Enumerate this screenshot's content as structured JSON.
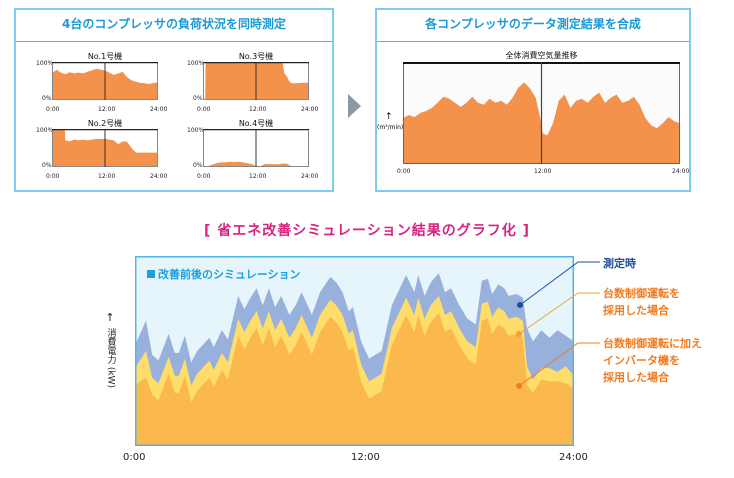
{
  "left_panel": {
    "title": "4台のコンプレッサの負荷状況を同時測定",
    "y_top": "100%",
    "y_bottom": "0%",
    "x_ticks": [
      "0:00",
      "12:00",
      "24:00"
    ],
    "charts": [
      {
        "title": "No.1号機",
        "x": [
          0,
          1,
          2,
          3,
          4,
          5,
          6,
          7,
          8,
          9,
          10,
          11,
          12,
          13,
          14,
          15,
          16,
          17,
          18,
          19,
          20,
          21,
          22,
          23,
          24
        ],
        "y": [
          70,
          80,
          72,
          68,
          73,
          70,
          72,
          70,
          74,
          78,
          82,
          80,
          78,
          72,
          66,
          70,
          74,
          60,
          52,
          48,
          45,
          44,
          42,
          45,
          46
        ]
      },
      {
        "title": "No.3号機",
        "x": [
          0,
          0.5,
          0.6,
          1,
          2,
          4,
          6,
          8,
          10,
          12,
          14,
          16,
          18,
          18.4,
          19,
          19.5,
          20,
          21,
          22,
          23,
          24
        ],
        "y": [
          0,
          0,
          100,
          100,
          100,
          100,
          100,
          100,
          100,
          100,
          100,
          100,
          100,
          70,
          62,
          50,
          44,
          44,
          45,
          45,
          46
        ]
      },
      {
        "title": "No.2号機",
        "x": [
          0,
          1,
          2,
          2.9,
          3,
          4,
          5,
          6,
          7,
          8,
          9,
          10,
          11,
          12,
          13,
          14,
          15,
          16,
          17,
          18,
          19,
          20,
          21,
          22,
          23,
          24
        ],
        "y": [
          100,
          100,
          100,
          100,
          70,
          68,
          72,
          70,
          72,
          70,
          72,
          74,
          74,
          74,
          72,
          70,
          60,
          68,
          66,
          50,
          38,
          38,
          38,
          38,
          38,
          38
        ]
      },
      {
        "title": "No.4号機",
        "x": [
          0,
          1,
          2,
          3,
          4,
          5,
          6,
          7,
          8,
          9,
          10,
          11,
          12,
          13,
          14,
          15,
          16,
          17,
          18,
          19,
          20,
          21,
          22,
          23,
          24
        ],
        "y": [
          2,
          2,
          6,
          10,
          12,
          12,
          14,
          13,
          14,
          12,
          10,
          8,
          3,
          2,
          8,
          8,
          7,
          7,
          9,
          9,
          2,
          2,
          2,
          2,
          2
        ]
      }
    ]
  },
  "right_panel": {
    "title": "各コンプレッサのデータ測定結果を合成",
    "chart_title": "全体消費空気量推移",
    "y_unit": "(m³/min)",
    "x_ticks": [
      "0:00",
      "12:00",
      "24:00"
    ]
  },
  "heading": "[ 省エネ改善シミュレーション結果のグラフ化 ]",
  "chart_data": [
    {
      "type": "area",
      "title": "全体消費空気量推移",
      "ylabel": "(m³/min)",
      "xlim": [
        0,
        24
      ],
      "ylim": [
        0,
        100
      ],
      "x": [
        0,
        0.5,
        1,
        1.5,
        2,
        2.5,
        3,
        3.5,
        4,
        4.5,
        5,
        5.5,
        6,
        6.5,
        7,
        7.5,
        8,
        8.5,
        9,
        9.5,
        10,
        10.5,
        11,
        11.5,
        11.9,
        12.1,
        12.5,
        13,
        13.5,
        14,
        14.5,
        15,
        15.5,
        16,
        16.5,
        17,
        17.5,
        18,
        18.5,
        19,
        19.5,
        20,
        20.5,
        21,
        21.5,
        22,
        22.5,
        23,
        23.5,
        24
      ],
      "y": [
        45,
        48,
        46,
        50,
        52,
        55,
        60,
        66,
        64,
        60,
        56,
        60,
        66,
        60,
        58,
        64,
        60,
        62,
        58,
        65,
        75,
        80,
        74,
        65,
        45,
        30,
        28,
        40,
        62,
        68,
        55,
        62,
        64,
        60,
        66,
        70,
        60,
        65,
        68,
        60,
        62,
        66,
        58,
        45,
        38,
        35,
        40,
        46,
        42,
        40
      ]
    },
    {
      "type": "area",
      "legend_title": "改善前後のシミュレーション",
      "ylabel": "消費電力 (kW)",
      "x_ticks": [
        "0:00",
        "12:00",
        "24:00"
      ],
      "xlim": [
        0,
        24
      ],
      "ylim": [
        0,
        100
      ],
      "x": [
        0,
        0.6,
        0.94,
        1.28,
        1.84,
        2.17,
        2.4,
        2.73,
        3.07,
        3.4,
        4.07,
        4.3,
        4.75,
        5.08,
        5.64,
        5.98,
        6.31,
        6.65,
        6.98,
        7.32,
        7.66,
        7.99,
        8.44,
        8.78,
        9.11,
        9.67,
        10.12,
        10.68,
        11.01,
        11.35,
        11.69,
        11.91,
        12.36,
        12.8,
        13.48,
        14.04,
        14.82,
        15.27,
        15.49,
        15.83,
        16.16,
        16.61,
        16.95,
        17.28,
        17.73,
        18.18,
        18.63,
        18.96,
        19.3,
        19.52,
        19.86,
        20.19,
        20.42,
        20.86,
        21.2,
        21.43,
        21.76,
        22.21,
        22.66,
        23.1,
        23.55,
        24
      ],
      "series": [
        {
          "name": "測定時",
          "color": "#97b1dc",
          "values": [
            53,
            66,
            48,
            45,
            59,
            49,
            49,
            58,
            44,
            50,
            57,
            52,
            61,
            56,
            79,
            72,
            78,
            83,
            74,
            83,
            73,
            79,
            69,
            74,
            81,
            69,
            81,
            89,
            86,
            81,
            71,
            73,
            55,
            46,
            50,
            74,
            90,
            81,
            90,
            79,
            86,
            91,
            81,
            83,
            74,
            67,
            64,
            87,
            88,
            80,
            85,
            83,
            79,
            80,
            78,
            62,
            55,
            61,
            57,
            61,
            58,
            55
          ]
        },
        {
          "name": "台数制御運転を採用した場合",
          "color": "#fedd6a",
          "values": [
            41,
            50,
            36,
            33,
            47,
            37,
            37,
            46,
            32,
            38,
            45,
            40,
            49,
            44,
            67,
            60,
            66,
            71,
            62,
            71,
            61,
            67,
            57,
            62,
            69,
            57,
            69,
            77,
            74,
            69,
            59,
            61,
            43,
            34,
            38,
            62,
            78,
            69,
            78,
            67,
            74,
            79,
            69,
            71,
            62,
            55,
            52,
            75,
            76,
            68,
            73,
            71,
            67,
            68,
            66,
            42,
            35,
            41,
            41,
            39,
            42,
            37
          ]
        },
        {
          "name": "台数制御運転に加えインバータ機を採用した場合",
          "color": "#fbb84d",
          "values": [
            32,
            36,
            27,
            24,
            38,
            28,
            28,
            37,
            23,
            29,
            36,
            31,
            40,
            35,
            58,
            51,
            57,
            62,
            53,
            62,
            52,
            58,
            48,
            53,
            60,
            48,
            60,
            68,
            65,
            60,
            50,
            52,
            34,
            25,
            29,
            53,
            69,
            60,
            69,
            58,
            65,
            70,
            60,
            62,
            53,
            46,
            43,
            66,
            67,
            59,
            64,
            62,
            58,
            59,
            57,
            32,
            28,
            35,
            34,
            34,
            33,
            30
          ]
        }
      ]
    }
  ],
  "annotations": [
    {
      "lines": [
        "測定時"
      ],
      "color": "#1c4f9c"
    },
    {
      "lines": [
        "台数制御運転を",
        "採用した場合"
      ],
      "color": "#f07c22"
    },
    {
      "lines": [
        "台数制御運転に加え",
        "インバータ機を",
        "採用した場合"
      ],
      "color": "#f07c22"
    }
  ],
  "colors": {
    "panel_border": "#4db8e8",
    "panel_title": "#1a9ad6",
    "mini_fill": "#f4914a",
    "heading": "#d6247f",
    "chart_bg": "#e6f5fc",
    "legend": "#1aa1dc"
  }
}
